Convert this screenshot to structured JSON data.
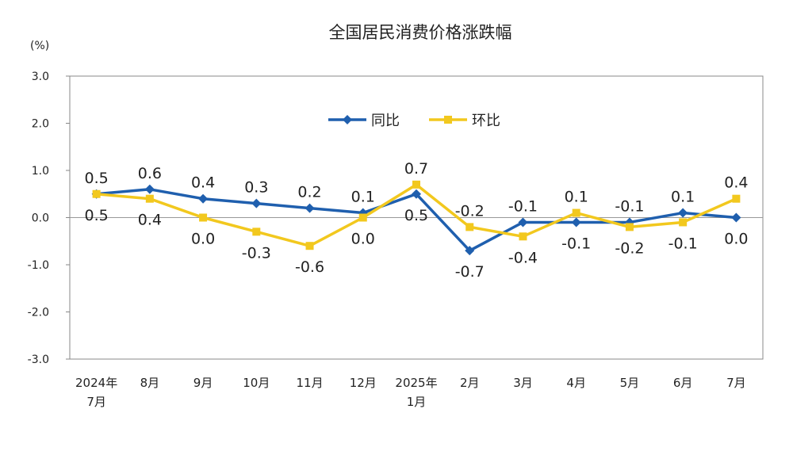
{
  "chart_data": {
    "type": "line",
    "title": "全国居民消费价格涨跌幅",
    "ylabel": "(%)",
    "ylim": [
      -3.0,
      3.0
    ],
    "yticks": [
      "3.0",
      "2.0",
      "1.0",
      "0.0",
      "-1.0",
      "-2.0",
      "-3.0"
    ],
    "grid": false,
    "legend_placement": "top-center",
    "categories": [
      [
        "2024年",
        "7月"
      ],
      [
        "8月"
      ],
      [
        "9月"
      ],
      [
        "10月"
      ],
      [
        "11月"
      ],
      [
        "12月"
      ],
      [
        "2025年",
        "1月"
      ],
      [
        "2月"
      ],
      [
        "3月"
      ],
      [
        "4月"
      ],
      [
        "5月"
      ],
      [
        "6月"
      ],
      [
        "7月"
      ]
    ],
    "series": [
      {
        "name": "同比",
        "color": "#1f5fae",
        "marker": "diamond",
        "values": [
          0.5,
          0.6,
          0.4,
          0.3,
          0.2,
          0.1,
          0.5,
          -0.7,
          -0.1,
          -0.1,
          -0.1,
          0.1,
          0.0
        ],
        "label_positions": [
          "above",
          "above",
          "above",
          "above",
          "above",
          "above",
          "below",
          "below",
          "above",
          "below",
          "above",
          "above",
          "below"
        ]
      },
      {
        "name": "环比",
        "color": "#f2c81e",
        "marker": "square",
        "values": [
          0.5,
          0.4,
          0.0,
          -0.3,
          -0.6,
          0.0,
          0.7,
          -0.2,
          -0.4,
          0.1,
          -0.2,
          -0.1,
          0.4
        ],
        "label_positions": [
          "below",
          "below",
          "below",
          "below",
          "below",
          "below",
          "above",
          "above",
          "below",
          "above",
          "below",
          "below",
          "above"
        ]
      }
    ]
  }
}
